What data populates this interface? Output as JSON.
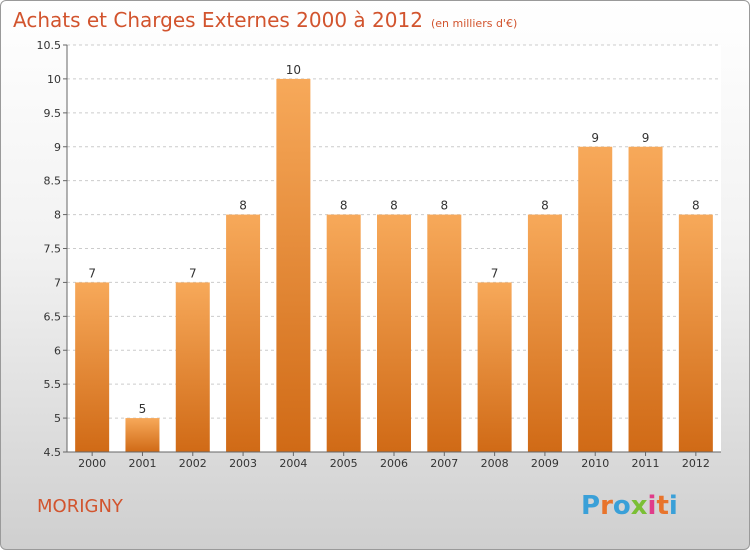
{
  "header": {
    "title": "Achats et Charges Externes 2000 à 2012",
    "unit": "(en milliers d'€)"
  },
  "footer": {
    "city": "MORIGNY",
    "logo_letters": [
      "P",
      "r",
      "o",
      "x",
      "i",
      "t",
      "i"
    ],
    "logo_colors": [
      "#3aa0d8",
      "#e8742c",
      "#3aa0d8",
      "#7bbf35",
      "#e03c8a",
      "#e8742c",
      "#3aa0d8"
    ]
  },
  "chart_data": {
    "type": "bar",
    "categories": [
      "2000",
      "2001",
      "2002",
      "2003",
      "2004",
      "2005",
      "2006",
      "2007",
      "2008",
      "2009",
      "2010",
      "2011",
      "2012"
    ],
    "values": [
      7,
      5,
      7,
      8,
      10,
      8,
      8,
      8,
      7,
      8,
      9,
      9,
      8
    ],
    "data_labels": [
      "7",
      "5",
      "7",
      "8",
      "10",
      "8",
      "8",
      "8",
      "7",
      "8",
      "9",
      "9",
      "8"
    ],
    "title": "Achats et Charges Externes 2000 à 2012",
    "xlabel": "",
    "ylabel": "",
    "ylim": [
      4.5,
      10.5
    ],
    "yticks": [
      4.5,
      5,
      5.5,
      6,
      6.5,
      7,
      7.5,
      8,
      8.5,
      9,
      9.5,
      10,
      10.5
    ],
    "ytick_labels": [
      "4.5",
      "5",
      "5.5",
      "6",
      "6.5",
      "7",
      "7.5",
      "8",
      "8.5",
      "9",
      "9.5",
      "10",
      "10.5"
    ],
    "grid": "horizontal-dashed",
    "legend": "none",
    "bar_color_top": "#f7a95a",
    "bar_color_bottom": "#d06a16"
  }
}
